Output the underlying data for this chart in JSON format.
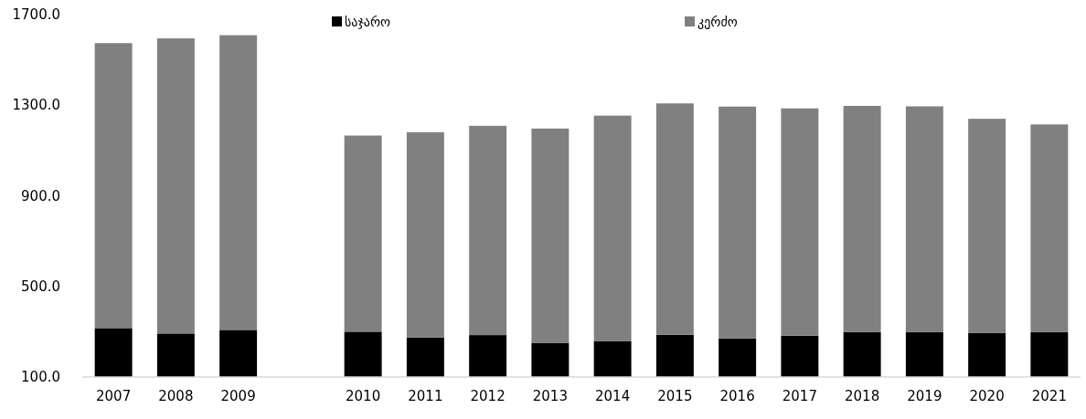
{
  "chart_data": {
    "type": "bar",
    "stacked": true,
    "categories": [
      "2007",
      "2008",
      "2009",
      null,
      "2010",
      "2011",
      "2012",
      "2013",
      "2014",
      "2015",
      "2016",
      "2017",
      "2018",
      "2019",
      "2020",
      "2021"
    ],
    "series": [
      {
        "name": "საჯარო",
        "color": "#000000",
        "values": [
          316,
          292,
          308,
          null,
          300,
          275,
          285,
          251,
          259,
          286,
          270,
          282,
          298,
          298,
          295,
          298
        ]
      },
      {
        "name": "კერძო",
        "color": "#808080",
        "values": [
          1258,
          1303,
          1301,
          null,
          866,
          906,
          924,
          946,
          995,
          1022,
          1024,
          1004,
          999,
          997,
          945,
          917
        ]
      }
    ],
    "ylim": [
      100,
      1700
    ],
    "yticks": [
      {
        "value": 100,
        "label": "100.0"
      },
      {
        "value": 500,
        "label": "500.0"
      },
      {
        "value": 900,
        "label": "900.0"
      },
      {
        "value": 1300,
        "label": "1300.0"
      },
      {
        "value": 1700,
        "label": "1700.0"
      }
    ],
    "grid": false,
    "legend": "top"
  }
}
